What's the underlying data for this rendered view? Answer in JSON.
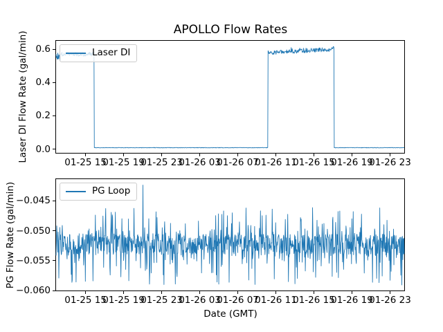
{
  "figure": {
    "title": "APOLLO Flow Rates",
    "background": "#ffffff",
    "accent_color": "#1f77b4",
    "spine_color": "#000000",
    "legend_border_color": "#cccccc"
  },
  "chart_data": [
    {
      "type": "line",
      "subplot": "top",
      "title": "APOLLO Flow Rates",
      "ylabel": "Laser DI Flow Rate (gal/min)",
      "legend": {
        "label": "Laser DI",
        "position": "upper left"
      },
      "series_color": "#1f77b4",
      "grid": false,
      "x_axis": {
        "tick_labels": [
          "01-25 15",
          "01-25 19",
          "01-25 23",
          "01-26 03",
          "01-26 07",
          "01-26 11",
          "01-26 15",
          "01-26 19",
          "01-26 23"
        ],
        "tick_hours": [
          15,
          19,
          23,
          27,
          31,
          35,
          39,
          43,
          47
        ],
        "domain_hours_from_01-25_00:00": [
          11.9,
          48.64
        ]
      },
      "y_axis": {
        "tick_labels": [
          "0.0",
          "0.2",
          "0.4",
          "0.6"
        ],
        "tick_values": [
          0.0,
          0.2,
          0.4,
          0.6
        ],
        "ylim": [
          -0.031,
          0.651
        ]
      },
      "segments": [
        {
          "start": "01-25 ~11:55",
          "end": "01-25 ~15:55",
          "start_hour": 11.9,
          "end_hour": 15.91,
          "level": 0.57,
          "noise_halfwidth": 0.013,
          "description": "flow on, noisy ~0.55-0.59 gal/min, brief dip at very start"
        },
        {
          "start": "01-25 ~15:55",
          "end": "01-26 ~10:14",
          "start_hour": 15.91,
          "end_hour": 34.24,
          "level": 0.0,
          "noise_halfwidth": 0.0015,
          "description": "flow off, ~0.0 gal/min"
        },
        {
          "start": "01-26 ~10:14",
          "end": "01-26 ~17:13",
          "start_hour": 34.24,
          "end_hour": 41.22,
          "level_start": 0.578,
          "level_end": 0.6,
          "noise_halfwidth": 0.013,
          "description": "flow on, drifting up ~0.58 to ~0.61 gal/min"
        },
        {
          "start": "01-26 ~17:13",
          "end": "01-27 ~00:38",
          "start_hour": 41.22,
          "end_hour": 48.64,
          "level": 0.0,
          "noise_halfwidth": 0.0015,
          "description": "flow off, ~0.0 gal/min"
        }
      ]
    },
    {
      "type": "line",
      "subplot": "bottom",
      "ylabel": "PG Flow Rate (gal/min)",
      "xlabel": "Date (GMT)",
      "legend": {
        "label": "PG Loop",
        "position": "upper left"
      },
      "series_color": "#1f77b4",
      "grid": false,
      "x_axis": {
        "tick_labels": [
          "01-25 15",
          "01-25 19",
          "01-25 23",
          "01-26 03",
          "01-26 07",
          "01-26 11",
          "01-26 15",
          "01-26 19",
          "01-26 23"
        ],
        "tick_hours": [
          15,
          19,
          23,
          27,
          31,
          35,
          39,
          43,
          47
        ],
        "domain_hours_from_01-25_00:00": [
          11.9,
          48.64
        ]
      },
      "y_axis": {
        "tick_labels": [
          "−0.045",
          "−0.050",
          "−0.055",
          "−0.060"
        ],
        "tick_values": [
          -0.045,
          -0.05,
          -0.055,
          -0.06
        ],
        "ylim": [
          -0.0602,
          -0.0414
        ]
      },
      "signal": {
        "mean": -0.0524,
        "dense_band": [
          -0.054,
          -0.0508
        ],
        "up_spikes_to": -0.0462,
        "down_spikes_to": -0.0593,
        "outlier": {
          "time": "01-25 ~21:04",
          "hour": 21.07,
          "value": -0.0424
        },
        "description": "stationary noisy signal around -0.052 gal/min with frequent spikes; single tall spike to about -0.042"
      }
    }
  ]
}
